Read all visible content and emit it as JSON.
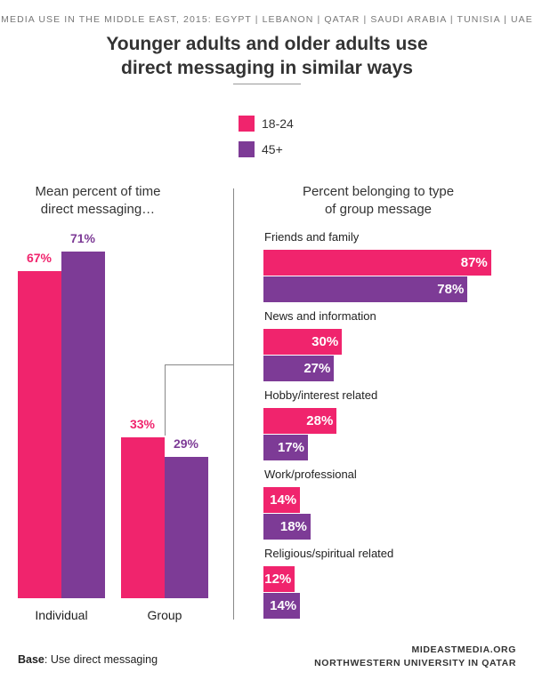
{
  "header": {
    "supertitle": "MEDIA USE IN THE MIDDLE EAST, 2015: EGYPT | LEBANON | QATAR | SAUDI ARABIA | TUNISIA | UAE",
    "title_line1": "Younger adults and older adults use",
    "title_line2": "direct messaging in similar ways"
  },
  "legend": {
    "items": [
      {
        "label": "18-24",
        "color": "#f0246d"
      },
      {
        "label": "45+",
        "color": "#7d3b96"
      }
    ]
  },
  "footer": {
    "base_label": "Base",
    "base_text": ": Use direct messaging",
    "credit_line1": "MIDEASTMEDIA.ORG",
    "credit_line2": "NORTHWESTERN UNIVERSITY IN QATAR"
  },
  "chart_data": [
    {
      "type": "bar",
      "title_line1": "Mean percent of time",
      "title_line2": "direct messaging…",
      "categories": [
        "Individual",
        "Group"
      ],
      "series": [
        {
          "name": "18-24",
          "values": [
            67,
            33
          ],
          "labels": [
            "67%",
            "33%"
          ],
          "color": "#f0246d"
        },
        {
          "name": "45+",
          "values": [
            71,
            29
          ],
          "labels": [
            "71%",
            "29%"
          ],
          "color": "#7d3b96"
        }
      ],
      "ylim": [
        0,
        100
      ]
    },
    {
      "type": "bar",
      "orientation": "horizontal",
      "title_line1": "Percent belonging to type",
      "title_line2": "of group message",
      "categories": [
        "Friends and family",
        "News and information",
        "Hobby/interest related",
        "Work/professional",
        "Religious/spiritual related"
      ],
      "series": [
        {
          "name": "18-24",
          "values": [
            87,
            30,
            28,
            14,
            12
          ],
          "labels": [
            "87%",
            "30%",
            "28%",
            "14%",
            "12%"
          ],
          "color": "#f0246d"
        },
        {
          "name": "45+",
          "values": [
            78,
            27,
            17,
            18,
            14
          ],
          "labels": [
            "78%",
            "27%",
            "17%",
            "18%",
            "14%"
          ],
          "color": "#7d3b96"
        }
      ],
      "xlim": [
        0,
        100
      ]
    }
  ]
}
